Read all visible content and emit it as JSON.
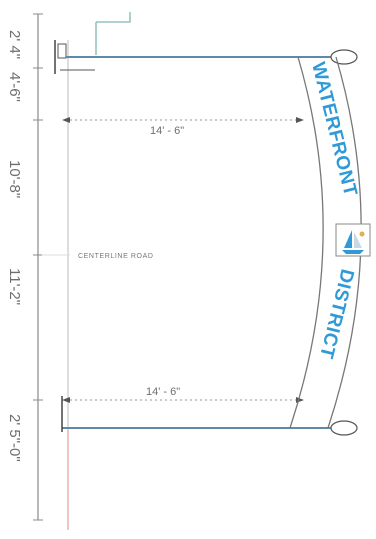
{
  "dimensions": {
    "left_column": [
      "2' 4\"",
      "4'-6\"",
      "10'-8\"",
      "11'-2\"",
      "2' 5\"-0\""
    ],
    "top_width": "14' - 6\"",
    "bottom_width": "14' - 6\""
  },
  "labels": {
    "centerline": "CENTERLINE ROAD"
  },
  "banner": {
    "word_top": "WATERFRONT",
    "word_bottom": "DISTRICT",
    "color": "#2f9ad6"
  },
  "icons": {
    "emblem": "sailboat-icon"
  }
}
